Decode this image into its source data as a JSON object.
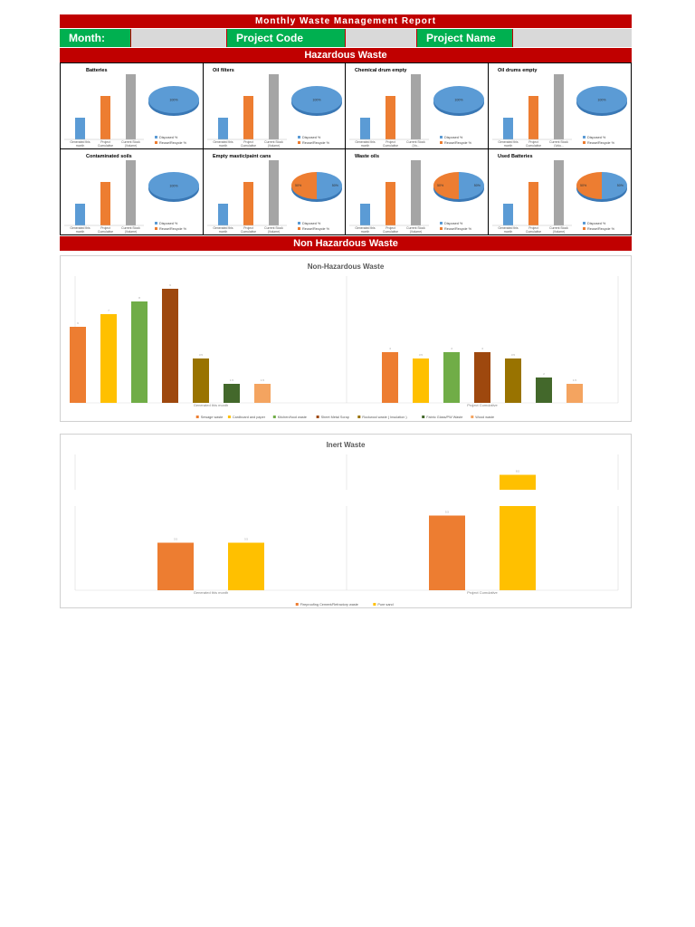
{
  "report": {
    "title": "Monthly Waste Management Report",
    "month_label": "Month:",
    "project_code_label": "Project Code",
    "project_name_label": "Project Name",
    "hazardous_heading": "Hazardous Waste",
    "non_hazardous_heading": "Non Hazardous Waste"
  },
  "colors": {
    "red": "#c00000",
    "green": "#00b050",
    "gray": "#d9d9d9",
    "blue": "#5b9bd5",
    "orange": "#ed7d31",
    "grey_bar": "#a5a5a5"
  },
  "chart_data": [
    {
      "type": "bar",
      "title": "Batteries",
      "categories": [
        "Generated this month",
        "Project Cumulative",
        "Current Stock (Volume)"
      ],
      "values": [
        1,
        2,
        3
      ],
      "pie": {
        "legend": [
          "Disposed %",
          "Reuse/Recycle %"
        ],
        "values": [
          100,
          0
        ],
        "labels": [
          "100%",
          ""
        ]
      }
    },
    {
      "type": "bar",
      "title": "Oil filters",
      "categories": [
        "Generated this month",
        "Project Cumulative",
        "Current Stock (Volume)"
      ],
      "values": [
        1,
        2,
        3
      ],
      "pie": {
        "legend": [
          "Disposed %",
          "Reuse/Recycle %"
        ],
        "values": [
          100,
          0
        ],
        "labels": [
          "100%",
          ""
        ]
      }
    },
    {
      "type": "bar",
      "title": "Chemical drum empty",
      "categories": [
        "Generated this month",
        "Project Cumulative",
        "Current Stock (Vo..."
      ],
      "values": [
        1,
        2,
        3
      ],
      "pie": {
        "legend": [
          "Disposed %",
          "Reuse/Recycle %"
        ],
        "values": [
          100,
          0
        ],
        "labels": [
          "100%",
          ""
        ]
      }
    },
    {
      "type": "bar",
      "title": "Oil drums empty",
      "categories": [
        "Generated this month",
        "Project Cumulative",
        "Current Stock (Volu..."
      ],
      "values": [
        1,
        2,
        3
      ],
      "pie": {
        "legend": [
          "Disposed %",
          "Reuse/Recycle %"
        ],
        "values": [
          100,
          0
        ],
        "labels": [
          "100%",
          ""
        ]
      }
    },
    {
      "type": "bar",
      "title": "Contaminated soils",
      "categories": [
        "Generated this month",
        "Project Cumulative",
        "Current Stock (Volume)"
      ],
      "values": [
        1,
        2,
        3
      ],
      "pie": {
        "legend": [
          "Disposed %",
          "Reuse/Recycle %"
        ],
        "values": [
          100,
          0
        ],
        "labels": [
          "100%",
          ""
        ]
      }
    },
    {
      "type": "bar",
      "title": "Empty mastic/paint cans",
      "categories": [
        "Generated this month",
        "Project Cumulative",
        "Current Stock (Volume)"
      ],
      "values": [
        1,
        2,
        3
      ],
      "pie": {
        "legend": [
          "Disposed %",
          "Reuse/Recycle %"
        ],
        "values": [
          50,
          50
        ],
        "labels": [
          "50%",
          "50%"
        ]
      }
    },
    {
      "type": "bar",
      "title": "Waste oils",
      "categories": [
        "Generated this month",
        "Project Cumulative",
        "Current Stock (Volume)"
      ],
      "values": [
        1,
        2,
        3
      ],
      "pie": {
        "legend": [
          "Disposed %",
          "Reuse/Recycle %"
        ],
        "values": [
          50,
          50
        ],
        "labels": [
          "50%",
          "50%"
        ]
      }
    },
    {
      "type": "bar",
      "title": "Used Batteries",
      "categories": [
        "Generated this month",
        "Project Cumulative",
        "Current Stock (Volume)"
      ],
      "values": [
        1,
        2,
        3
      ],
      "pie": {
        "legend": [
          "Disposed %",
          "Reuse/Recycle %"
        ],
        "values": [
          50,
          50
        ],
        "labels": [
          "50%",
          "50%"
        ]
      }
    },
    {
      "type": "bar",
      "title": "Non-Hazardous Waste",
      "categories": [
        "Generated this month",
        "Project Cumulative"
      ],
      "ylim": [
        0,
        10
      ],
      "series": [
        {
          "name": "Sewage waste",
          "color": "#ed7d31",
          "values": [
            6,
            4
          ]
        },
        {
          "name": "Cardboard and paper",
          "color": "#ffc000",
          "values": [
            7,
            3.5
          ]
        },
        {
          "name": "Kitchen/food waste",
          "color": "#70ad47",
          "values": [
            8,
            4
          ]
        },
        {
          "name": "Sheet Metal Scrap",
          "color": "#9e480e",
          "values": [
            9,
            4
          ]
        },
        {
          "name": "Rockwool waste ( Insulation )",
          "color": "#997300",
          "values": [
            3.5,
            3.5
          ]
        },
        {
          "name": "Fabric Glass/PW Waste",
          "color": "#43682b",
          "values": [
            1.5,
            2
          ]
        },
        {
          "name": "Wood waste",
          "color": "#f4a460",
          "values": [
            1.5,
            1.5
          ]
        }
      ]
    },
    {
      "type": "bar",
      "title": "Inert Waste",
      "categories": [
        "Generated this month",
        "Project Cumulative"
      ],
      "ylim": [
        0,
        10
      ],
      "series": [
        {
          "name": "Fireproofing Cement/Refractory waste",
          "color": "#ed7d31",
          "values": [
            3.5,
            5.5
          ]
        },
        {
          "name": "Pure sand",
          "color": "#ffc000",
          "values": [
            3.5,
            8.5
          ]
        }
      ]
    }
  ]
}
